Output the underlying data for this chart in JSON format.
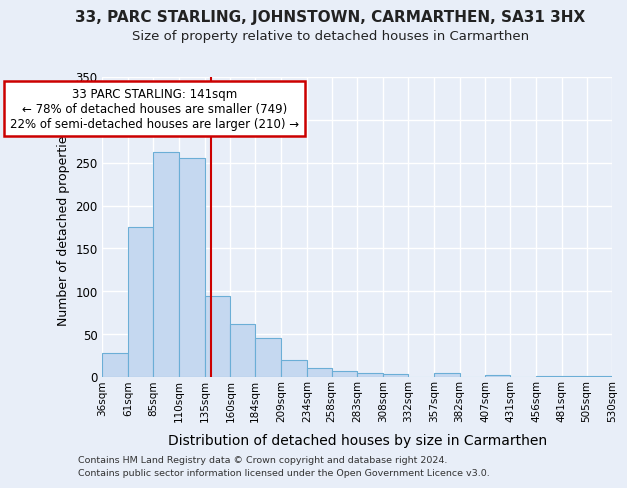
{
  "title": "33, PARC STARLING, JOHNSTOWN, CARMARTHEN, SA31 3HX",
  "subtitle": "Size of property relative to detached houses in Carmarthen",
  "xlabel": "Distribution of detached houses by size in Carmarthen",
  "ylabel": "Number of detached properties",
  "footnote1": "Contains HM Land Registry data © Crown copyright and database right 2024.",
  "footnote2": "Contains public sector information licensed under the Open Government Licence v3.0.",
  "annotation_line1": "33 PARC STARLING: 141sqm",
  "annotation_line2": "← 78% of detached houses are smaller (749)",
  "annotation_line3": "22% of semi-detached houses are larger (210) →",
  "bar_color": "#c5d8f0",
  "bar_edge_color": "#6baed6",
  "red_line_x": 141,
  "bin_edges": [
    36,
    61,
    85,
    110,
    135,
    160,
    184,
    209,
    234,
    258,
    283,
    308,
    332,
    357,
    382,
    407,
    431,
    456,
    481,
    505,
    530
  ],
  "bar_heights": [
    28,
    175,
    263,
    255,
    95,
    62,
    46,
    20,
    10,
    7,
    5,
    3,
    0,
    5,
    0,
    2,
    0,
    1,
    1,
    1
  ],
  "ylim": [
    0,
    350
  ],
  "yticks": [
    0,
    50,
    100,
    150,
    200,
    250,
    300,
    350
  ],
  "background_color": "#e8eef8",
  "axes_bg_color": "#e8eef8",
  "grid_color": "#ffffff",
  "annotation_box_color": "#ffffff",
  "annotation_box_edge_color": "#cc0000",
  "red_line_color": "#cc0000",
  "title_fontsize": 11,
  "subtitle_fontsize": 9.5,
  "ylabel_fontsize": 9,
  "xlabel_fontsize": 10
}
